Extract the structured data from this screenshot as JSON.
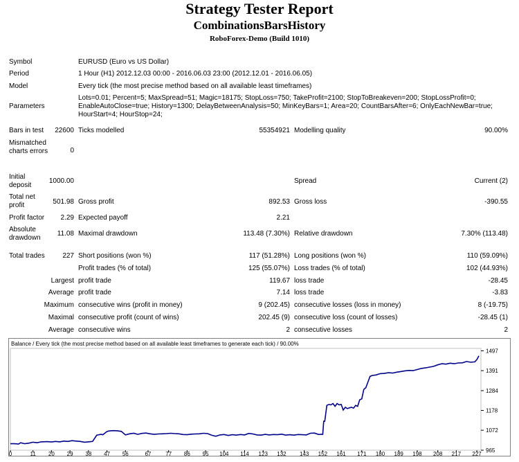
{
  "header": {
    "title": "Strategy Tester Report",
    "subtitle": "CombinationsBarsHistory",
    "server": "RoboForex-Demo (Build 1010)"
  },
  "info": {
    "symbol_label": "Symbol",
    "symbol_value": "EURUSD (Euro vs US Dollar)",
    "period_label": "Period",
    "period_value": "1 Hour (H1) 2012.12.03 00:00 - 2016.06.03 23:00 (2012.12.01 - 2016.06.05)",
    "model_label": "Model",
    "model_value": "Every tick (the most precise method based on all available least timeframes)",
    "parameters_label": "Parameters",
    "parameters_value": "Lots=0.01; Percent=5; MaxSpread=51; Magic=18175; StopLoss=750; TakeProfit=2100; StopToBreakeven=200; StopLossProfit=0; EnableAutoClose=true; History=1300; DelayBetweenAnalysis=50; MinKeyBars=1; Area=20; CountBarsAfter=6; OnlyEachNewBar=true; HourStart=4; HourStop=24;"
  },
  "stats": {
    "bars_label": "Bars in test",
    "bars_value": "22600",
    "ticks_label": "Ticks modelled",
    "ticks_value": "55354921",
    "quality_label": "Modelling quality",
    "quality_value": "90.00%",
    "mismatch_label": "Mismatched charts errors",
    "mismatch_value": "0",
    "deposit_label": "Initial deposit",
    "deposit_value": "1000.00",
    "spread_label": "Spread",
    "spread_value": "Current (2)",
    "netprofit_label": "Total net profit",
    "netprofit_value": "501.98",
    "grossprofit_label": "Gross profit",
    "grossprofit_value": "892.53",
    "grossloss_label": "Gross loss",
    "grossloss_value": "-390.55",
    "pf_label": "Profit factor",
    "pf_value": "2.29",
    "payoff_label": "Expected payoff",
    "payoff_value": "2.21",
    "absdd_label": "Absolute drawdown",
    "absdd_value": "11.08",
    "maxdd_label": "Maximal drawdown",
    "maxdd_value": "113.48 (7.30%)",
    "reldd_label": "Relative drawdown",
    "reldd_value": "7.30% (113.48)",
    "trades_label": "Total trades",
    "trades_value": "227",
    "short_label": "Short positions (won %)",
    "short_value": "117 (51.28%)",
    "long_label": "Long positions (won %)",
    "long_value": "110 (59.09%)",
    "profit_trades_label": "Profit trades (% of total)",
    "profit_trades_value": "125 (55.07%)",
    "loss_trades_label": "Loss trades (% of total)",
    "loss_trades_value": "102 (44.93%)",
    "largest_label": "Largest",
    "largest_profit_label": "profit trade",
    "largest_profit_value": "119.67",
    "largest_loss_label": "loss trade",
    "largest_loss_value": "-28.45",
    "average_label": "Average",
    "average_profit_label": "profit trade",
    "average_profit_value": "7.14",
    "average_loss_label": "loss trade",
    "average_loss_value": "-3.83",
    "maximum_label": "Maximum",
    "max_wins_label": "consecutive wins (profit in money)",
    "max_wins_value": "9 (202.45)",
    "max_losses_label": "consecutive losses (loss in money)",
    "max_losses_value": "8 (-19.75)",
    "maximal_label": "Maximal",
    "maximal_profit_label": "consecutive profit (count of wins)",
    "maximal_profit_value": "202.45 (9)",
    "maximal_loss_label": "consecutive loss (count of losses)",
    "maximal_loss_value": "-28.45 (1)",
    "avg2_label": "Average",
    "avg_wins_label": "consecutive wins",
    "avg_wins_value": "2",
    "avg_losses_label": "consecutive losses",
    "avg_losses_value": "2"
  },
  "chart_data": {
    "type": "line",
    "caption": "Balance / Every tick (the most precise method based on all available least timeframes to generate each tick) / 90.00%",
    "x_ticks": [
      "0",
      "11",
      "20",
      "29",
      "38",
      "47",
      "56",
      "67",
      "77",
      "86",
      "95",
      "104",
      "114",
      "123",
      "132",
      "143",
      "152",
      "161",
      "171",
      "180",
      "189",
      "198",
      "208",
      "217",
      "227"
    ],
    "y_ticks": [
      "1497",
      "1391",
      "1284",
      "1178",
      "1072",
      "965"
    ],
    "xlim": [
      0,
      229
    ],
    "ylim": [
      965,
      1510
    ],
    "line_color": "#00008b",
    "series": [
      {
        "x": [
          0,
          2,
          4,
          5,
          7,
          9,
          11,
          13,
          15,
          18,
          20,
          22,
          24,
          26,
          28,
          30,
          32,
          34,
          36,
          38,
          40,
          42,
          44,
          45,
          47,
          48,
          50,
          52,
          54,
          56,
          58,
          60,
          62,
          64,
          66,
          68,
          70,
          72,
          74,
          76,
          78,
          80,
          82,
          84,
          86,
          88,
          90,
          92,
          94,
          96,
          98,
          100,
          102,
          104,
          106,
          108,
          110,
          112,
          114,
          116,
          118,
          120,
          122,
          124,
          126,
          128,
          130,
          132,
          134,
          136,
          138,
          140,
          142,
          144,
          146,
          148,
          150,
          151,
          152,
          152.5,
          153,
          154,
          155,
          156,
          157,
          158,
          159,
          160,
          161,
          162,
          163,
          164,
          165,
          166,
          167,
          168,
          169,
          170,
          171,
          172,
          173,
          174,
          175,
          176,
          178,
          180,
          182,
          184,
          186,
          188,
          190,
          192,
          194,
          196,
          198,
          200,
          202,
          204,
          206,
          208,
          210,
          212,
          214,
          216,
          218,
          220,
          222,
          224,
          226,
          227,
          228
        ],
        "y": [
          1000,
          1000,
          998,
          1005,
          1000,
          1003,
          1008,
          1005,
          1010,
          1011,
          1009,
          1012,
          1010,
          1014,
          1012,
          1016,
          1014,
          1012,
          1008,
          1010,
          1012,
          1045,
          1050,
          1048,
          1065,
          1068,
          1070,
          1069,
          1066,
          1047,
          1053,
          1056,
          1050,
          1055,
          1057,
          1053,
          1050,
          1052,
          1053,
          1054,
          1056,
          1054,
          1053,
          1049,
          1048,
          1051,
          1052,
          1053,
          1056,
          1054,
          1045,
          1040,
          1047,
          1049,
          1044,
          1048,
          1046,
          1049,
          1047,
          1055,
          1052,
          1047,
          1046,
          1050,
          1047,
          1049,
          1048,
          1051,
          1046,
          1048,
          1046,
          1049,
          1048,
          1047,
          1056,
          1057,
          1049,
          1050,
          1050,
          1120,
          1120,
          1205,
          1210,
          1208,
          1215,
          1200,
          1215,
          1208,
          1210,
          1180,
          1195,
          1188,
          1192,
          1195,
          1190,
          1205,
          1200,
          1235,
          1240,
          1290,
          1300,
          1330,
          1360,
          1365,
          1368,
          1375,
          1376,
          1380,
          1378,
          1383,
          1386,
          1390,
          1392,
          1391,
          1397,
          1403,
          1406,
          1410,
          1414,
          1422,
          1428,
          1426,
          1431,
          1428,
          1432,
          1433,
          1440,
          1436,
          1438,
          1450,
          1470
        ]
      }
    ]
  }
}
